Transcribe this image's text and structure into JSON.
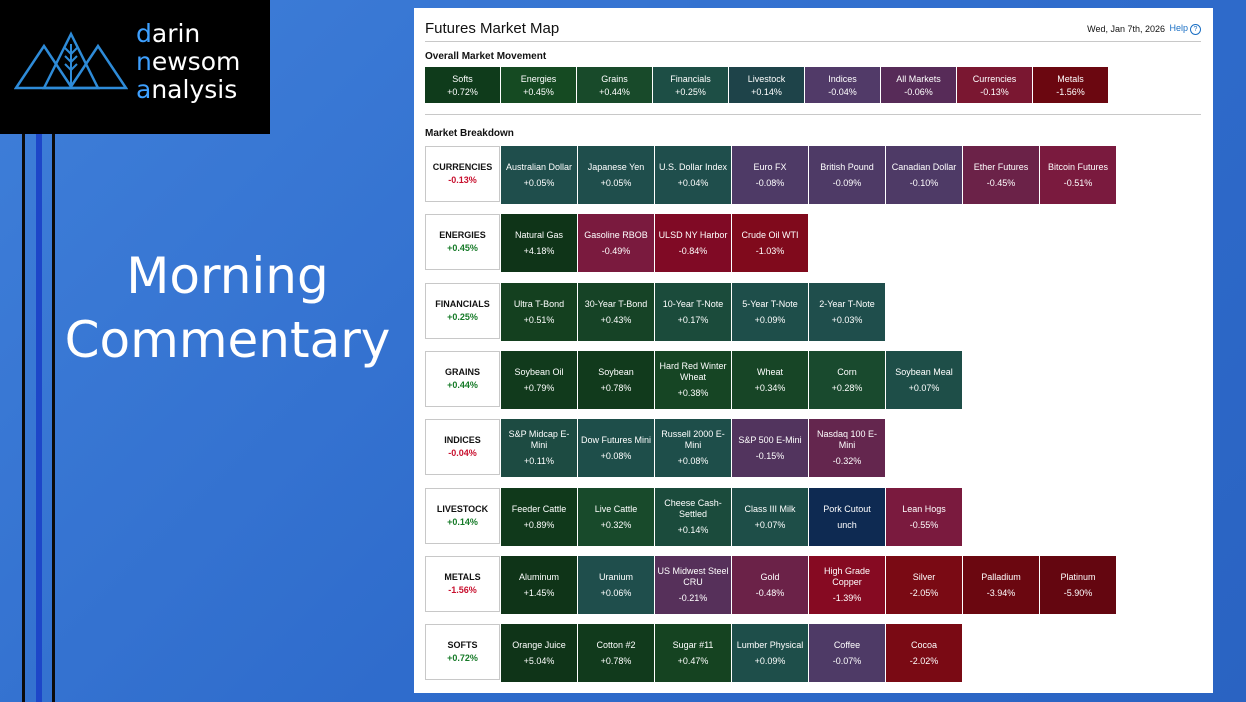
{
  "brand": {
    "line1": {
      "first": "d",
      "rest": "arin"
    },
    "line2": {
      "first": "n",
      "rest": "ewsom"
    },
    "line3": {
      "first": "a",
      "rest": "nalysis"
    },
    "accent": "#3ea0ff"
  },
  "slide_title": {
    "line1": "Morning",
    "line2": "Commentary"
  },
  "map": {
    "title": "Futures Market Map",
    "date": "Wed, Jan 7th, 2026",
    "help": "Help",
    "overall_label": "Overall Market Movement",
    "breakdown_label": "Market Breakdown",
    "overall": [
      {
        "name": "Softs",
        "change": "+0.72%",
        "color": "#0f3b1b"
      },
      {
        "name": "Energies",
        "change": "+0.45%",
        "color": "#154a22"
      },
      {
        "name": "Grains",
        "change": "+0.44%",
        "color": "#184a2a"
      },
      {
        "name": "Financials",
        "change": "+0.25%",
        "color": "#1d4e45"
      },
      {
        "name": "Livestock",
        "change": "+0.14%",
        "color": "#1e4349"
      },
      {
        "name": "Indices",
        "change": "-0.04%",
        "color": "#513a68"
      },
      {
        "name": "All Markets",
        "change": "-0.06%",
        "color": "#572b58"
      },
      {
        "name": "Currencies",
        "change": "-0.13%",
        "color": "#7a1731"
      },
      {
        "name": "Metals",
        "change": "-1.56%",
        "color": "#6b0710"
      }
    ],
    "breakdown": [
      {
        "group": "CURRENCIES",
        "change": "-0.13%",
        "sign": "neg",
        "items": [
          {
            "name": "Australian Dollar",
            "change": "+0.05%",
            "color": "#1f4e4c"
          },
          {
            "name": "Japanese Yen",
            "change": "+0.05%",
            "color": "#1f4e4c"
          },
          {
            "name": "U.S. Dollar Index",
            "change": "+0.04%",
            "color": "#1f4e4c"
          },
          {
            "name": "Euro FX",
            "change": "-0.08%",
            "color": "#4e3a66"
          },
          {
            "name": "British Pound",
            "change": "-0.09%",
            "color": "#4e3a66"
          },
          {
            "name": "Canadian Dollar",
            "change": "-0.10%",
            "color": "#4e3a66"
          },
          {
            "name": "Ether Futures",
            "change": "-0.45%",
            "color": "#6b2248"
          },
          {
            "name": "Bitcoin Futures",
            "change": "-0.51%",
            "color": "#7a1a3e"
          }
        ]
      },
      {
        "group": "ENERGIES",
        "change": "+0.45%",
        "sign": "pos",
        "items": [
          {
            "name": "Natural Gas",
            "change": "+4.18%",
            "color": "#0f3418"
          },
          {
            "name": "Gasoline RBOB",
            "change": "-0.49%",
            "color": "#7a1a3e"
          },
          {
            "name": "ULSD NY Harbor",
            "change": "-0.84%",
            "color": "#800a25"
          },
          {
            "name": "Crude Oil WTI",
            "change": "-1.03%",
            "color": "#800a1c"
          }
        ]
      },
      {
        "group": "FINANCIALS",
        "change": "+0.25%",
        "sign": "pos",
        "items": [
          {
            "name": "Ultra T-Bond",
            "change": "+0.51%",
            "color": "#14401f"
          },
          {
            "name": "30-Year T-Bond",
            "change": "+0.43%",
            "color": "#164326"
          },
          {
            "name": "10-Year T-Note",
            "change": "+0.17%",
            "color": "#1b4b3b"
          },
          {
            "name": "5-Year T-Note",
            "change": "+0.09%",
            "color": "#1e4e4a"
          },
          {
            "name": "2-Year T-Note",
            "change": "+0.03%",
            "color": "#1f4e4c"
          }
        ]
      },
      {
        "group": "GRAINS",
        "change": "+0.44%",
        "sign": "pos",
        "items": [
          {
            "name": "Soybean Oil",
            "change": "+0.79%",
            "color": "#113a1c"
          },
          {
            "name": "Soybean",
            "change": "+0.78%",
            "color": "#113a1c"
          },
          {
            "name": "Hard Red Winter Wheat",
            "change": "+0.38%",
            "color": "#164524"
          },
          {
            "name": "Wheat",
            "change": "+0.34%",
            "color": "#174526"
          },
          {
            "name": "Corn",
            "change": "+0.28%",
            "color": "#194a2e"
          },
          {
            "name": "Soybean Meal",
            "change": "+0.07%",
            "color": "#1e4e48"
          }
        ]
      },
      {
        "group": "INDICES",
        "change": "-0.04%",
        "sign": "neg",
        "items": [
          {
            "name": "S&P Midcap E-Mini",
            "change": "+0.11%",
            "color": "#1d4b42"
          },
          {
            "name": "Dow Futures Mini",
            "change": "+0.08%",
            "color": "#1e4e4a"
          },
          {
            "name": "Russell 2000 E-Mini",
            "change": "+0.08%",
            "color": "#1e4e4a"
          },
          {
            "name": "S&P 500 E-Mini",
            "change": "-0.15%",
            "color": "#52345e"
          },
          {
            "name": "Nasdaq 100 E-Mini",
            "change": "-0.32%",
            "color": "#64264e"
          }
        ]
      },
      {
        "group": "LIVESTOCK",
        "change": "+0.14%",
        "sign": "pos",
        "items": [
          {
            "name": "Feeder Cattle",
            "change": "+0.89%",
            "color": "#10391b"
          },
          {
            "name": "Live Cattle",
            "change": "+0.32%",
            "color": "#184a2b"
          },
          {
            "name": "Cheese Cash-Settled",
            "change": "+0.14%",
            "color": "#1b4b3c"
          },
          {
            "name": "Class III Milk",
            "change": "+0.07%",
            "color": "#1e4e48"
          },
          {
            "name": "Pork Cutout",
            "change": "unch",
            "color": "#0e2a52"
          },
          {
            "name": "Lean Hogs",
            "change": "-0.55%",
            "color": "#7a1a3e"
          }
        ]
      },
      {
        "group": "METALS",
        "change": "-1.56%",
        "sign": "neg",
        "items": [
          {
            "name": "Aluminum",
            "change": "+1.45%",
            "color": "#0f3418"
          },
          {
            "name": "Uranium",
            "change": "+0.06%",
            "color": "#1f4e4c"
          },
          {
            "name": "US Midwest Steel CRU",
            "change": "-0.21%",
            "color": "#56305a"
          },
          {
            "name": "Gold",
            "change": "-0.48%",
            "color": "#6b2248"
          },
          {
            "name": "High Grade Copper",
            "change": "-1.39%",
            "color": "#860a22"
          },
          {
            "name": "Silver",
            "change": "-2.05%",
            "color": "#7a0a14"
          },
          {
            "name": "Palladium",
            "change": "-3.94%",
            "color": "#6b0710"
          },
          {
            "name": "Platinum",
            "change": "-5.90%",
            "color": "#640610"
          }
        ]
      },
      {
        "group": "SOFTS",
        "change": "+0.72%",
        "sign": "pos",
        "items": [
          {
            "name": "Orange Juice",
            "change": "+5.04%",
            "color": "#0f3418"
          },
          {
            "name": "Cotton #2",
            "change": "+0.78%",
            "color": "#113a1c"
          },
          {
            "name": "Sugar #11",
            "change": "+0.47%",
            "color": "#154321"
          },
          {
            "name": "Lumber Physical",
            "change": "+0.09%",
            "color": "#1e4e4a"
          },
          {
            "name": "Coffee",
            "change": "-0.07%",
            "color": "#4e3a66"
          },
          {
            "name": "Cocoa",
            "change": "-2.02%",
            "color": "#7a0a14"
          }
        ]
      }
    ]
  }
}
